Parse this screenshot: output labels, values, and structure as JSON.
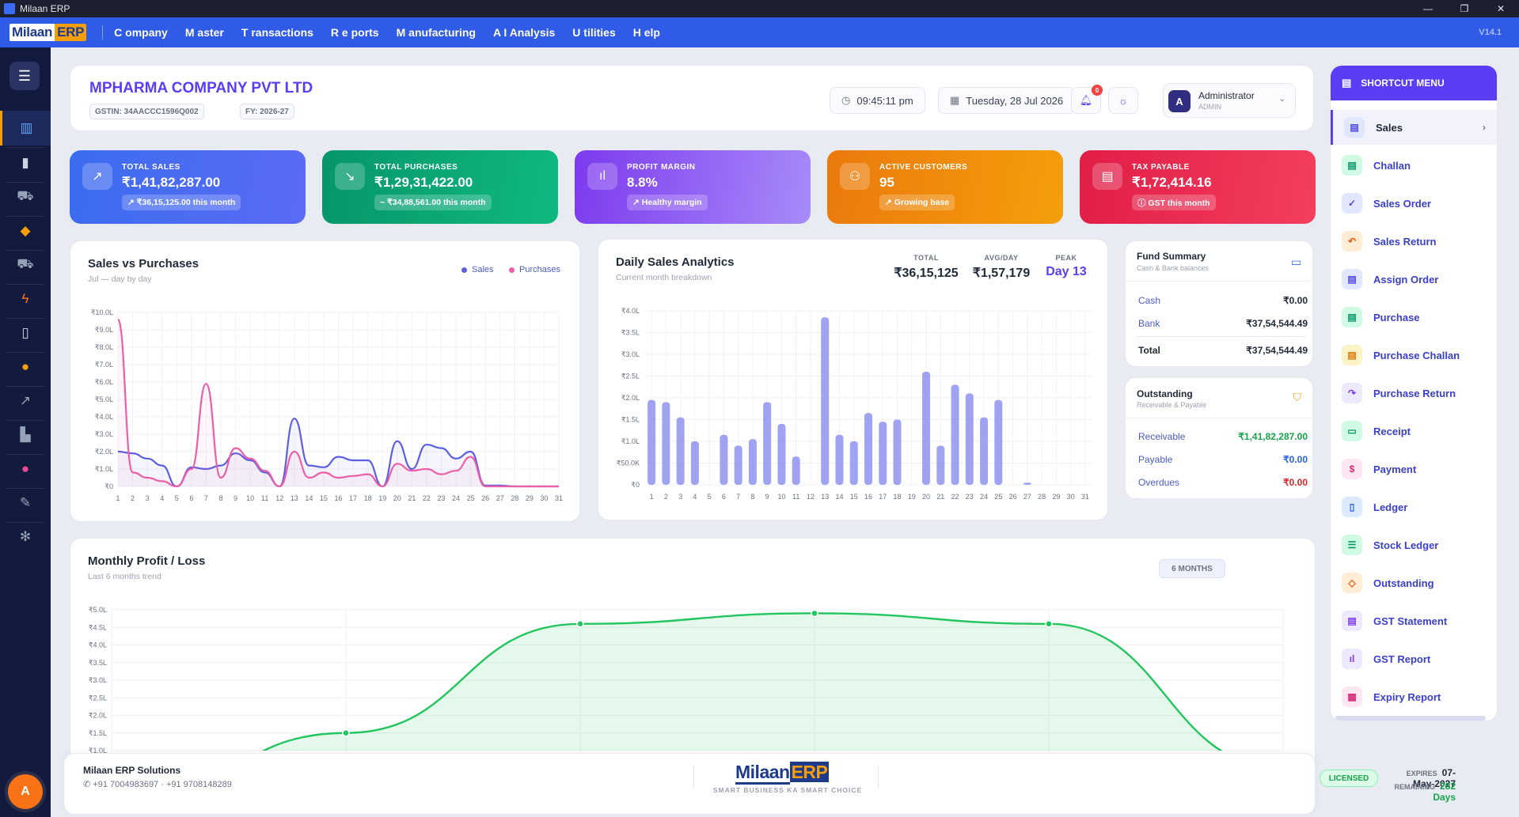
{
  "window": {
    "title": "Milaan ERP",
    "controls": [
      "—",
      "❐",
      "✕"
    ]
  },
  "brand": {
    "part1": "Milaan",
    "part2": "ERP",
    "tagline": "SMART BUSINESS KA SMART CHOICE"
  },
  "menu": [
    {
      "label": "C ompany"
    },
    {
      "label": "M aster"
    },
    {
      "label": "T ransactions"
    },
    {
      "label": "R e ports"
    },
    {
      "label": "M anufacturing"
    },
    {
      "label": "A I Analysis"
    },
    {
      "label": "U tilities"
    },
    {
      "label": "H elp"
    }
  ],
  "version": "V14.1",
  "sidebar": {
    "toggle_icon": "☰",
    "items": [
      {
        "icon": "dashboard-icon",
        "glyph": "▥",
        "color": "#60a5fa"
      },
      {
        "icon": "mobile-icon",
        "glyph": "▮",
        "color": "#cbd5e1"
      },
      {
        "icon": "cart-icon",
        "glyph": "⛟",
        "color": "#94a3b8"
      },
      {
        "icon": "box-icon",
        "glyph": "◆",
        "color": "#f59e0b"
      },
      {
        "icon": "cart-icon",
        "glyph": "⛟",
        "color": "#94a3b8"
      },
      {
        "icon": "bolt-icon",
        "glyph": "ϟ",
        "color": "#f97316"
      },
      {
        "icon": "book-icon",
        "glyph": "▯",
        "color": "#cbd5e1"
      },
      {
        "icon": "money-bag-icon",
        "glyph": "●",
        "color": "#f59e0b"
      },
      {
        "icon": "trend-chart-icon",
        "glyph": "↗",
        "color": "#94a3b8"
      },
      {
        "icon": "factory-icon",
        "glyph": "▙",
        "color": "#94a3b8"
      },
      {
        "icon": "brain-icon",
        "glyph": "●",
        "color": "#ec4899"
      },
      {
        "icon": "wrench-icon",
        "glyph": "✎",
        "color": "#94a3b8"
      },
      {
        "icon": "gear-icon",
        "glyph": "✻",
        "color": "#94a3b8"
      }
    ],
    "avatar": "A"
  },
  "header": {
    "company": "MPHARMA COMPANY PVT LTD",
    "gstin": "GSTIN: 34AACCC1596Q002",
    "fy": "FY: 2026-27",
    "time": "09:45:11 pm",
    "date": "Tuesday, 28 Jul 2026",
    "notifications": "0",
    "user": {
      "initial": "A",
      "name": "Administrator",
      "role": "ADMIN"
    }
  },
  "stats": [
    {
      "label": "TOTAL SALES",
      "value": "₹1,41,82,287.00",
      "note": "↗ ₹36,15,125.00 this month",
      "icon": "↗",
      "color_from": "#3b6cf0",
      "color_to": "#5b6bf5"
    },
    {
      "label": "TOTAL PURCHASES",
      "value": "₹1,29,31,422.00",
      "note": "~ ₹34,88,561.00 this month",
      "icon": "↘",
      "color_from": "#059669",
      "color_to": "#10b981"
    },
    {
      "label": "PROFIT MARGIN",
      "value": "8.8%",
      "note": "↗ Healthy margin",
      "icon": "ıl",
      "color_from": "#7c3aed",
      "color_to": "#a78bfa"
    },
    {
      "label": "ACTIVE CUSTOMERS",
      "value": "95",
      "note": "↗ Growing base",
      "icon": "⚇",
      "color_from": "#ea7a0c",
      "color_to": "#f59e0b"
    },
    {
      "label": "TAX PAYABLE",
      "value": "₹1,72,414.16",
      "note": "ⓘ GST this month",
      "icon": "▤",
      "color_from": "#e11d48",
      "color_to": "#f43f5e"
    }
  ],
  "sales_vs_purchases": {
    "title": "Sales vs Purchases",
    "subtitle": "Jul — day by day",
    "legend": [
      "Sales",
      "Purchases"
    ]
  },
  "daily_sales": {
    "title": "Daily Sales Analytics",
    "subtitle": "Current month breakdown",
    "total_label": "TOTAL",
    "total": "₹36,15,125",
    "avg_label": "AVG/DAY",
    "avg": "₹1,57,179",
    "peak_label": "PEAK",
    "peak": "Day 13"
  },
  "fund_summary": {
    "title": "Fund Summary",
    "subtitle": "Cash & Bank balances",
    "rows": [
      {
        "label": "Cash",
        "value": "₹0.00"
      },
      {
        "label": "Bank",
        "value": "₹37,54,544.49"
      },
      {
        "label": "Total",
        "value": "₹37,54,544.49"
      }
    ]
  },
  "outstanding": {
    "title": "Outstanding",
    "subtitle": "Receivable & Payable",
    "rows": [
      {
        "label": "Receivable",
        "value": "₹1,41,82,287.00",
        "color": "#16a34a"
      },
      {
        "label": "Payable",
        "value": "₹0.00",
        "color": "#2563eb"
      },
      {
        "label": "Overdues",
        "value": "₹0.00",
        "color": "#dc2626"
      }
    ]
  },
  "monthly_pl": {
    "title": "Monthly Profit / Loss",
    "subtitle": "Last 6 months trend",
    "badge": "6 MONTHS"
  },
  "shortcut_menu": {
    "title": "SHORTCUT MENU",
    "items": [
      {
        "label": "Sales",
        "icon": "▤",
        "bg": "#e0e7ff",
        "fg": "#4f46e5"
      },
      {
        "label": "Challan",
        "icon": "▤",
        "bg": "#d1fae5",
        "fg": "#059669"
      },
      {
        "label": "Sales Order",
        "icon": "✓",
        "bg": "#e0e7ff",
        "fg": "#4f46e5"
      },
      {
        "label": "Sales Return",
        "icon": "↶",
        "bg": "#ffedd5",
        "fg": "#ea580c"
      },
      {
        "label": "Assign Order",
        "icon": "▤",
        "bg": "#e0e7ff",
        "fg": "#4f46e5"
      },
      {
        "label": "Purchase",
        "icon": "▤",
        "bg": "#d1fae5",
        "fg": "#059669"
      },
      {
        "label": "Purchase Challan",
        "icon": "▤",
        "bg": "#fef3c7",
        "fg": "#d97706"
      },
      {
        "label": "Purchase Return",
        "icon": "↷",
        "bg": "#ede9fe",
        "fg": "#7c3aed"
      },
      {
        "label": "Receipt",
        "icon": "▭",
        "bg": "#d1fae5",
        "fg": "#059669"
      },
      {
        "label": "Payment",
        "icon": "$",
        "bg": "#fce7f3",
        "fg": "#db2777"
      },
      {
        "label": "Ledger",
        "icon": "▯",
        "bg": "#dbeafe",
        "fg": "#2563eb"
      },
      {
        "label": "Stock Ledger",
        "icon": "☰",
        "bg": "#d1fae5",
        "fg": "#059669"
      },
      {
        "label": "Outstanding",
        "icon": "◇",
        "bg": "#ffedd5",
        "fg": "#ea580c"
      },
      {
        "label": "GST Statement",
        "icon": "▤",
        "bg": "#ede9fe",
        "fg": "#7c3aed"
      },
      {
        "label": "GST Report",
        "icon": "ıl",
        "bg": "#ede9fe",
        "fg": "#7c3aed"
      },
      {
        "label": "Expiry Report",
        "icon": "▦",
        "bg": "#fce7f3",
        "fg": "#db2777"
      }
    ]
  },
  "footer": {
    "company": "Milaan ERP Solutions",
    "phones": "+91 7004983697 · +91 9708148289",
    "license": "LICENSED",
    "expires_label": "EXPIRES",
    "expires": "07-May-2027",
    "remaining_label": "REMAINING",
    "remaining": "282 Days"
  },
  "chart_data": [
    {
      "type": "line",
      "title": "Sales vs Purchases",
      "x": [
        1,
        2,
        3,
        4,
        5,
        6,
        7,
        8,
        9,
        10,
        11,
        12,
        13,
        14,
        15,
        16,
        17,
        18,
        19,
        20,
        21,
        22,
        23,
        24,
        25,
        26,
        27,
        28,
        29,
        30,
        31
      ],
      "ylim": [
        0,
        10.0
      ],
      "y_ticks": [
        "₹0",
        "₹1.0L",
        "₹2.0L",
        "₹3.0L",
        "₹4.0L",
        "₹5.0L",
        "₹6.0L",
        "₹7.0L",
        "₹8.0L",
        "₹9.0L",
        "₹10.0L"
      ],
      "series": [
        {
          "name": "Sales",
          "color": "#5b5fe0",
          "values": [
            2.0,
            1.9,
            1.6,
            1.2,
            0.0,
            1.1,
            1.0,
            1.2,
            1.9,
            1.5,
            0.8,
            0.0,
            3.9,
            1.2,
            1.1,
            1.7,
            1.5,
            1.5,
            0.0,
            2.6,
            1.0,
            2.4,
            2.2,
            1.6,
            2.0,
            0.05,
            0.05,
            0.0,
            0.0,
            0.0,
            0.0
          ]
        },
        {
          "name": "Purchases",
          "color": "#ec5fa8",
          "values": [
            9.6,
            0.8,
            0.5,
            0.3,
            0.0,
            1.0,
            5.9,
            0.5,
            2.2,
            1.6,
            0.9,
            0.0,
            2.0,
            0.5,
            0.8,
            0.5,
            0.6,
            0.7,
            0.0,
            1.3,
            0.9,
            1.0,
            0.7,
            0.9,
            1.7,
            0.0,
            0.0,
            0.0,
            0.0,
            0.0,
            0.0
          ]
        }
      ],
      "grid": true,
      "legend": "top-right"
    },
    {
      "type": "bar",
      "title": "Daily Sales Analytics",
      "categories": [
        "1",
        "2",
        "3",
        "4",
        "5",
        "6",
        "7",
        "8",
        "9",
        "10",
        "11",
        "12",
        "13",
        "14",
        "15",
        "16",
        "17",
        "18",
        "19",
        "20",
        "21",
        "22",
        "23",
        "24",
        "25",
        "26",
        "27",
        "28",
        "29",
        "30",
        "31"
      ],
      "values": [
        1.95,
        1.9,
        1.55,
        1.0,
        0,
        1.15,
        0.9,
        1.05,
        1.9,
        1.4,
        0.65,
        0,
        3.85,
        1.15,
        1.0,
        1.65,
        1.45,
        1.5,
        0,
        2.6,
        0.9,
        2.3,
        2.1,
        1.55,
        1.95,
        0,
        0.05,
        0,
        0,
        0,
        0
      ],
      "ylim": [
        0,
        4.0
      ],
      "y_ticks": [
        "₹0",
        "₹50.0K",
        "₹1.0L",
        "₹1.5L",
        "₹2.0L",
        "₹2.5L",
        "₹3.0L",
        "₹3.5L",
        "₹4.0L"
      ],
      "color": "#8f93ee",
      "grid": true
    },
    {
      "type": "area",
      "title": "Monthly Profit / Loss",
      "categories": [
        "",
        "",
        "",
        "",
        "",
        ""
      ],
      "values": [
        -0.7,
        1.5,
        4.6,
        4.9,
        4.6,
        0.5
      ],
      "ylim": [
        1.0,
        5.0
      ],
      "y_ticks": [
        "₹1.0L",
        "₹1.5L",
        "₹2.0L",
        "₹2.5L",
        "₹3.0L",
        "₹3.5L",
        "₹4.0L",
        "₹4.5L",
        "₹5.0L"
      ],
      "color": "#22c55e",
      "grid": true
    }
  ]
}
